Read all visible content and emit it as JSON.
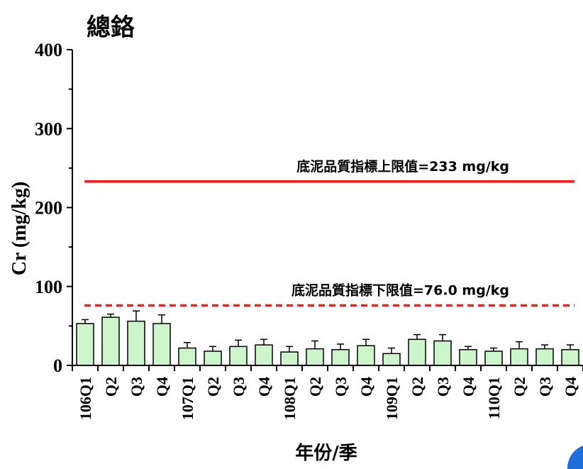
{
  "chart_data": {
    "type": "bar",
    "title": "總鉻",
    "ylabel": "Cr (mg/kg)",
    "xlabel": "年份/季",
    "ylim": [
      0,
      400
    ],
    "yticks": [
      0,
      100,
      200,
      300,
      400
    ],
    "grid": false,
    "categories": [
      "106Q1",
      "Q2",
      "Q3",
      "Q4",
      "107Q1",
      "Q2",
      "Q3",
      "Q4",
      "108Q1",
      "Q2",
      "Q3",
      "Q4",
      "109Q1",
      "Q2",
      "Q3",
      "Q4",
      "110Q1",
      "Q2",
      "Q3",
      "Q4"
    ],
    "values": [
      53,
      61,
      56,
      53,
      22,
      18,
      24,
      26,
      17,
      21,
      20,
      25,
      15,
      33,
      31,
      20,
      18,
      21,
      21,
      20
    ],
    "errors": [
      5,
      4,
      13,
      11,
      7,
      6,
      8,
      7,
      7,
      10,
      7,
      8,
      7,
      6,
      8,
      4,
      4,
      9,
      5,
      6
    ],
    "bar_color": "#ccf5cc",
    "reference_lines": [
      {
        "label": "底泥品質指標上限值=233 mg/kg",
        "value": 233,
        "style": "solid",
        "color": "#ff1a1a"
      },
      {
        "label": "底泥品質指標下限值=76.0 mg/kg",
        "value": 76.0,
        "style": "dashed",
        "color": "#ff1a1a"
      }
    ]
  }
}
